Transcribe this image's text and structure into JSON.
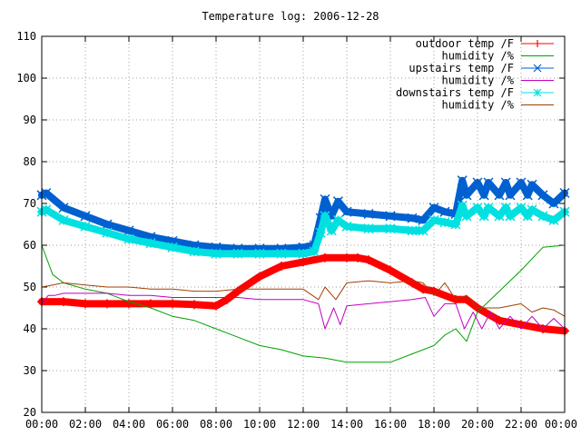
{
  "chart_data": {
    "type": "line",
    "title": "Temperature log: 2006-12-28",
    "xlabel": "",
    "ylabel": "",
    "ylim": [
      20,
      110
    ],
    "yticks": [
      20,
      30,
      40,
      50,
      60,
      70,
      80,
      90,
      100,
      110
    ],
    "xlim": [
      0,
      24
    ],
    "xticks": [
      0,
      2,
      4,
      6,
      8,
      10,
      12,
      14,
      16,
      18,
      20,
      22,
      24
    ],
    "xtick_labels": [
      "00:00",
      "02:00",
      "04:00",
      "06:00",
      "08:00",
      "10:00",
      "12:00",
      "14:00",
      "16:00",
      "18:00",
      "20:00",
      "22:00",
      "00:00"
    ],
    "grid": true,
    "legend_position": "top-right",
    "series": [
      {
        "name": "outdoor temp /F",
        "color": "#ff0000",
        "marker": "plus",
        "x": [
          0,
          1,
          2,
          3,
          4,
          5,
          6,
          7,
          8,
          8.5,
          9,
          10,
          11,
          12,
          13,
          14,
          14.5,
          15,
          16,
          17,
          17.5,
          18,
          19,
          19.5,
          20,
          21,
          22,
          23,
          24
        ],
        "y": [
          46.5,
          46.5,
          46,
          46,
          46,
          46,
          46,
          45.8,
          45.5,
          47,
          49,
          52.5,
          55,
          56,
          57,
          57,
          57,
          56.5,
          54,
          51,
          49.5,
          49,
          47,
          47,
          45,
          42,
          41,
          40,
          39.5
        ]
      },
      {
        "name": "humidity /%",
        "color": "#00a000",
        "marker": "none",
        "x": [
          0,
          0.5,
          1,
          2,
          3,
          4,
          5,
          6,
          7,
          8,
          9,
          10,
          11,
          12,
          13,
          14,
          15,
          16,
          17,
          18,
          18.5,
          19,
          19.5,
          20,
          21,
          22,
          23,
          24
        ],
        "y": [
          60,
          53,
          51,
          49.5,
          48.5,
          46.5,
          45,
          43,
          42,
          40,
          38,
          36,
          35,
          33.5,
          33,
          32,
          32,
          32,
          34,
          36,
          38.5,
          40,
          37,
          44,
          49,
          54,
          59.5,
          60
        ]
      },
      {
        "name": "upstairs temp /F",
        "color": "#0060d0",
        "marker": "x",
        "x": [
          0,
          0.2,
          1,
          2,
          3,
          4,
          5,
          6,
          7,
          8,
          9,
          10,
          11,
          12,
          12.5,
          12.8,
          13,
          13.3,
          13.6,
          14,
          15,
          16,
          17,
          17.5,
          18,
          18.5,
          19,
          19.3,
          19.5,
          20,
          20.3,
          20.5,
          21,
          21.3,
          21.5,
          22,
          22.3,
          22.5,
          23,
          23.5,
          24
        ],
        "y": [
          72,
          72.5,
          69,
          67,
          65,
          63.5,
          62,
          61,
          60,
          59.5,
          59.2,
          59.2,
          59.2,
          59.5,
          60,
          66.5,
          71,
          67,
          70.5,
          68,
          67.5,
          67,
          66.5,
          66,
          69,
          68,
          67.5,
          75.5,
          72,
          75,
          72,
          75,
          72,
          75,
          72,
          75,
          72,
          74.5,
          72,
          70,
          72.5
        ]
      },
      {
        "name": "humidity /%",
        "color": "#c000c0",
        "marker": "none",
        "x": [
          0,
          0.3,
          0.6,
          1,
          2,
          3,
          4,
          5,
          6,
          7,
          8,
          9,
          10,
          11,
          12,
          12.7,
          13,
          13.4,
          13.7,
          14,
          15,
          16,
          17,
          17.6,
          18,
          18.5,
          19,
          19.4,
          19.8,
          20.2,
          20.6,
          21,
          21.5,
          22,
          22.5,
          23,
          23.5,
          24
        ],
        "y": [
          46,
          48,
          48,
          48.5,
          48.5,
          48.5,
          48,
          48,
          47.5,
          47.5,
          47.5,
          47.5,
          47,
          47,
          47,
          46,
          40,
          45,
          41,
          45.5,
          46,
          46.5,
          47,
          47.5,
          43,
          46,
          46,
          40,
          44,
          40,
          44,
          40,
          43,
          40,
          43,
          40,
          42.5,
          40
        ]
      },
      {
        "name": "downstairs temp /F",
        "color": "#00e0e0",
        "marker": "star",
        "x": [
          0,
          0.2,
          1,
          2,
          3,
          4,
          5,
          6,
          7,
          8,
          9,
          10,
          11,
          12,
          12.5,
          12.8,
          13,
          13.3,
          13.6,
          14,
          15,
          16,
          17,
          17.5,
          18,
          18.5,
          19,
          19.3,
          19.5,
          20,
          20.3,
          20.5,
          21,
          21.3,
          21.5,
          22,
          22.3,
          22.5,
          23,
          23.5,
          24
        ],
        "y": [
          68,
          68.5,
          66,
          64.5,
          63,
          61.5,
          60.5,
          59.5,
          58.5,
          58,
          58,
          58,
          58,
          58,
          58.5,
          63,
          67,
          63.5,
          66,
          64.5,
          64,
          64,
          63.5,
          63.5,
          66,
          65.5,
          65,
          69.5,
          67,
          69,
          67,
          69,
          67,
          69,
          67,
          69,
          67,
          68.5,
          67,
          66,
          68
        ]
      },
      {
        "name": "humidity /%",
        "color": "#a04000",
        "marker": "none",
        "x": [
          0,
          0.5,
          1,
          2,
          3,
          4,
          5,
          6,
          7,
          8,
          9,
          10,
          11,
          12,
          12.7,
          13,
          13.5,
          14,
          15,
          16,
          17,
          17.5,
          18,
          18.5,
          19,
          19.5,
          20,
          21,
          22,
          22.5,
          23,
          23.5,
          24
        ],
        "y": [
          50,
          50.5,
          51,
          50.5,
          50,
          50,
          49.5,
          49.5,
          49,
          49,
          49.5,
          49.5,
          49.5,
          49.5,
          47,
          50,
          47,
          51,
          51.5,
          51,
          51.5,
          51,
          48,
          51,
          47,
          48,
          45,
          45,
          46,
          44,
          45,
          44.5,
          43
        ]
      }
    ]
  }
}
